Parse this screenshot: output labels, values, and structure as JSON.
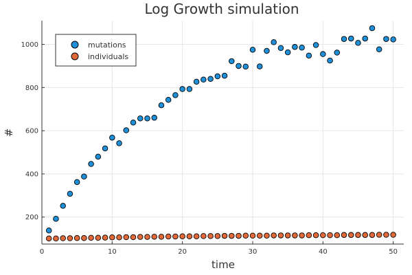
{
  "chart_data": {
    "type": "scatter",
    "title": "Log Growth simulation",
    "xlabel": "time",
    "ylabel": "#",
    "xlim": [
      0,
      51.5
    ],
    "ylim": [
      75,
      1110
    ],
    "xticks": [
      0,
      10,
      20,
      30,
      40,
      50
    ],
    "yticks": [
      200,
      400,
      600,
      800,
      1000
    ],
    "grid": true,
    "legend": "top-left",
    "x": [
      1,
      2,
      3,
      4,
      5,
      6,
      7,
      8,
      9,
      10,
      11,
      12,
      13,
      14,
      15,
      16,
      17,
      18,
      19,
      20,
      21,
      22,
      23,
      24,
      25,
      26,
      27,
      28,
      29,
      30,
      31,
      32,
      33,
      34,
      35,
      36,
      37,
      38,
      39,
      40,
      41,
      42,
      43,
      44,
      45,
      46,
      47,
      48,
      49,
      50
    ],
    "series": [
      {
        "name": "mutations",
        "color": "#1f8fd8",
        "values": [
          138,
          192,
          252,
          308,
          362,
          388,
          446,
          480,
          518,
          568,
          542,
          602,
          638,
          657,
          657,
          660,
          718,
          743,
          765,
          793,
          793,
          827,
          837,
          840,
          852,
          855,
          922,
          900,
          897,
          975,
          898,
          970,
          1010,
          983,
          963,
          988,
          985,
          948,
          997,
          955,
          925,
          962,
          1025,
          1027,
          1007,
          1027,
          1075,
          977,
          1025,
          1023
        ]
      },
      {
        "name": "individuals",
        "color": "#e26a3a",
        "values": [
          101,
          101,
          102,
          102,
          103,
          103,
          104,
          104,
          105,
          106,
          106,
          107,
          107,
          108,
          108,
          109,
          109,
          110,
          110,
          111,
          111,
          111,
          112,
          112,
          112,
          113,
          113,
          113,
          114,
          114,
          114,
          114,
          115,
          115,
          115,
          115,
          115,
          116,
          116,
          116,
          116,
          116,
          117,
          117,
          117,
          117,
          117,
          118,
          118,
          118
        ]
      }
    ]
  }
}
